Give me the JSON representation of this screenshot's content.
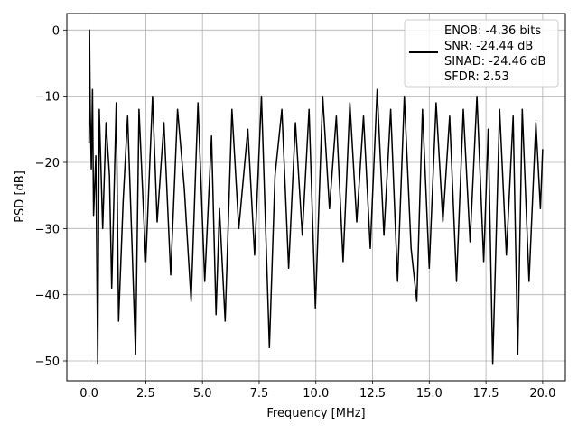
{
  "chart_data": {
    "type": "line",
    "title": "",
    "xlabel": "Frequency [MHz]",
    "ylabel": "PSD [dB]",
    "xlim": [
      -0.98,
      21.0
    ],
    "ylim": [
      -53.0,
      2.5
    ],
    "xticks": [
      0.0,
      2.5,
      5.0,
      7.5,
      10.0,
      12.5,
      15.0,
      17.5,
      20.0
    ],
    "xtick_labels": [
      "0.0",
      "2.5",
      "5.0",
      "7.5",
      "10.0",
      "12.5",
      "15.0",
      "17.5",
      "20.0"
    ],
    "yticks": [
      0,
      -10,
      -20,
      -30,
      -40,
      -50
    ],
    "ytick_labels": [
      "0",
      "−10",
      "−20",
      "−30",
      "−40",
      "−50"
    ],
    "grid": true,
    "legend_position": "top-right",
    "legend_lines": [
      "ENOB: -4.36 bits",
      "SNR: -24.44 dB",
      "SINAD: -24.46 dB",
      "SFDR: 2.53"
    ],
    "series": [
      {
        "color": "#000000",
        "x": [
          0.0,
          0.02,
          0.05,
          0.1,
          0.15,
          0.2,
          0.3,
          0.38,
          0.45,
          0.6,
          0.75,
          0.9,
          1.0,
          1.2,
          1.3,
          1.5,
          1.7,
          1.9,
          2.05,
          2.2,
          2.5,
          2.8,
          3.0,
          3.3,
          3.6,
          3.9,
          4.2,
          4.5,
          4.8,
          5.1,
          5.4,
          5.6,
          5.75,
          6.0,
          6.3,
          6.6,
          7.0,
          7.3,
          7.6,
          7.95,
          8.2,
          8.5,
          8.8,
          9.1,
          9.4,
          9.7,
          9.98,
          10.3,
          10.6,
          10.9,
          11.2,
          11.5,
          11.8,
          12.1,
          12.4,
          12.7,
          13.0,
          13.3,
          13.6,
          13.9,
          14.2,
          14.45,
          14.7,
          15.0,
          15.3,
          15.6,
          15.9,
          16.2,
          16.5,
          16.8,
          17.1,
          17.4,
          17.6,
          17.8,
          18.1,
          18.4,
          18.7,
          18.9,
          19.1,
          19.4,
          19.7,
          19.9,
          20.0
        ],
        "y": [
          -17,
          0,
          -12,
          -21,
          -9,
          -28,
          -19,
          -50.5,
          -12,
          -30,
          -14,
          -22,
          -39,
          -11,
          -44,
          -26,
          -13,
          -33,
          -49,
          -12,
          -35,
          -10,
          -29,
          -14,
          -37,
          -12,
          -24,
          -41,
          -11,
          -38,
          -16,
          -43,
          -27,
          -44,
          -12,
          -30,
          -15,
          -34,
          -10,
          -48,
          -22,
          -12,
          -36,
          -14,
          -31,
          -12,
          -42,
          -10,
          -27,
          -13,
          -35,
          -11,
          -29,
          -13,
          -33,
          -9,
          -31,
          -12,
          -38,
          -10,
          -33,
          -41,
          -12,
          -36,
          -11,
          -29,
          -13,
          -38,
          -12,
          -32,
          -10,
          -35,
          -15,
          -50.5,
          -12,
          -34,
          -13,
          -49,
          -12,
          -38,
          -14,
          -27,
          -18
        ]
      }
    ]
  }
}
